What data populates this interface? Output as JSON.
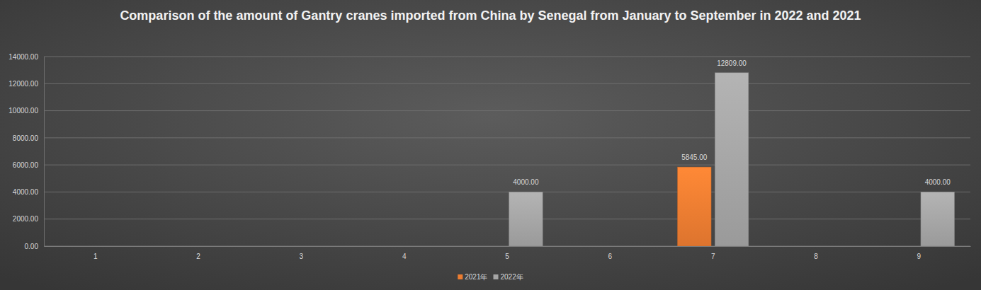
{
  "chart_data": {
    "type": "bar",
    "title": "Comparison of the amount of Gantry cranes imported from China by Senegal from January to September in 2022 and 2021",
    "categories": [
      "1",
      "2",
      "3",
      "4",
      "5",
      "6",
      "7",
      "8",
      "9"
    ],
    "series": [
      {
        "name": "2021年",
        "color": "#ed7d31",
        "values": [
          null,
          null,
          null,
          null,
          null,
          null,
          5845,
          null,
          null
        ],
        "value_labels": [
          null,
          null,
          null,
          null,
          null,
          null,
          "5845.00",
          null,
          null
        ]
      },
      {
        "name": "2022年",
        "color": "#a5a5a5",
        "values": [
          null,
          null,
          null,
          null,
          4000,
          null,
          12809,
          null,
          4000
        ],
        "value_labels": [
          null,
          null,
          null,
          null,
          "4000.00",
          null,
          "12809.00",
          null,
          "4000.00"
        ]
      }
    ],
    "ylim": [
      0,
      14000
    ],
    "yticks": [
      {
        "value": 0,
        "label": "0.00"
      },
      {
        "value": 2000,
        "label": "2000.00"
      },
      {
        "value": 4000,
        "label": "4000.00"
      },
      {
        "value": 6000,
        "label": "6000.00"
      },
      {
        "value": 8000,
        "label": "8000.00"
      },
      {
        "value": 10000,
        "label": "10000.00"
      },
      {
        "value": 12000,
        "label": "12000.00"
      },
      {
        "value": 14000,
        "label": "14000.00"
      }
    ],
    "grid": true,
    "legend": "bottom",
    "data_labels": true
  }
}
